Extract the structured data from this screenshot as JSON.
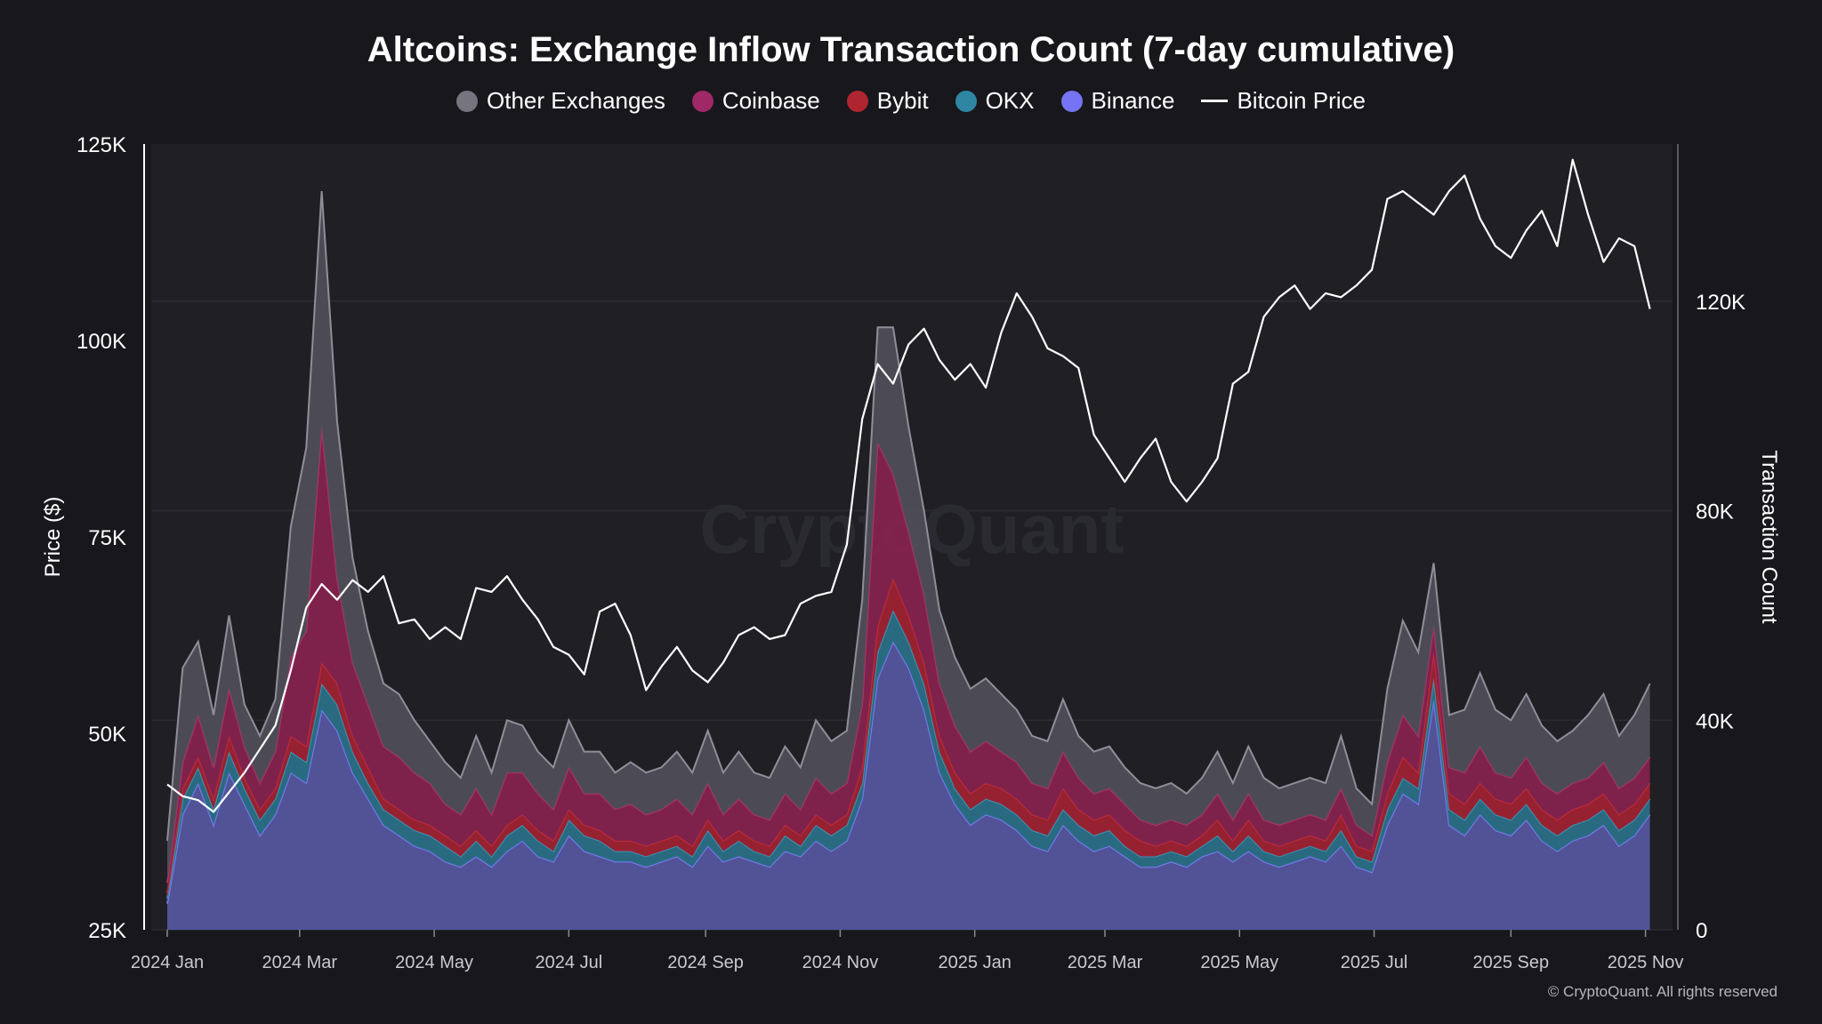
{
  "chart_data": {
    "type": "area",
    "title": "Altcoins: Exchange Inflow Transaction Count (7-day cumulative)",
    "ylabel": "Price ($)",
    "y2label": "Transaction Count",
    "ylim": [
      25000,
      125000
    ],
    "y2lim": [
      0,
      150000
    ],
    "yticks": [
      "25K",
      "50K",
      "75K",
      "100K",
      "125K"
    ],
    "y2ticks": [
      "0",
      "40K",
      "80K",
      "120K"
    ],
    "xticks": [
      "2024 Jan",
      "2024 Mar",
      "2024 May",
      "2024 Jul",
      "2024 Sep",
      "2024 Nov",
      "2025 Jan",
      "2025 Mar",
      "2025 May",
      "2025 Jul",
      "2025 Sep",
      "2025 Nov"
    ],
    "x": [
      "2024-01-01",
      "2024-01-08",
      "2024-01-15",
      "2024-01-22",
      "2024-01-29",
      "2024-02-05",
      "2024-02-12",
      "2024-02-19",
      "2024-02-26",
      "2024-03-04",
      "2024-03-11",
      "2024-03-18",
      "2024-03-25",
      "2024-04-01",
      "2024-04-08",
      "2024-04-15",
      "2024-04-22",
      "2024-04-29",
      "2024-05-06",
      "2024-05-13",
      "2024-05-20",
      "2024-05-27",
      "2024-06-03",
      "2024-06-10",
      "2024-06-17",
      "2024-06-24",
      "2024-07-01",
      "2024-07-08",
      "2024-07-15",
      "2024-07-22",
      "2024-07-29",
      "2024-08-05",
      "2024-08-12",
      "2024-08-19",
      "2024-08-26",
      "2024-09-02",
      "2024-09-09",
      "2024-09-16",
      "2024-09-23",
      "2024-09-30",
      "2024-10-07",
      "2024-10-14",
      "2024-10-21",
      "2024-10-28",
      "2024-11-04",
      "2024-11-11",
      "2024-11-18",
      "2024-11-25",
      "2024-12-02",
      "2024-12-09",
      "2024-12-16",
      "2024-12-23",
      "2024-12-30",
      "2025-01-06",
      "2025-01-13",
      "2025-01-20",
      "2025-01-27",
      "2025-02-03",
      "2025-02-10",
      "2025-02-17",
      "2025-02-24",
      "2025-03-03",
      "2025-03-10",
      "2025-03-17",
      "2025-03-24",
      "2025-03-31",
      "2025-04-07",
      "2025-04-14",
      "2025-04-21",
      "2025-04-28",
      "2025-05-05",
      "2025-05-12",
      "2025-05-19",
      "2025-05-26",
      "2025-06-02",
      "2025-06-09",
      "2025-06-16",
      "2025-06-23",
      "2025-06-30",
      "2025-07-07",
      "2025-07-14",
      "2025-07-21",
      "2025-07-28",
      "2025-08-04",
      "2025-08-11",
      "2025-08-18",
      "2025-08-25",
      "2025-09-01",
      "2025-09-08",
      "2025-09-15",
      "2025-09-22",
      "2025-09-29",
      "2025-10-06",
      "2025-10-13",
      "2025-10-20",
      "2025-10-27",
      "2025-11-03"
    ],
    "series": [
      {
        "name": "Binance",
        "color": "#6b6bf0",
        "values": [
          5,
          22,
          28,
          20,
          30,
          24,
          18,
          22,
          30,
          28,
          42,
          38,
          30,
          25,
          20,
          18,
          16,
          15,
          13,
          12,
          14,
          12,
          15,
          17,
          14,
          13,
          18,
          15,
          14,
          13,
          13,
          12,
          13,
          14,
          12,
          16,
          13,
          14,
          13,
          12,
          15,
          14,
          17,
          15,
          17,
          25,
          48,
          55,
          50,
          42,
          30,
          24,
          20,
          22,
          21,
          19,
          16,
          15,
          20,
          17,
          15,
          16,
          14,
          12,
          12,
          13,
          12,
          14,
          15,
          13,
          15,
          13,
          12,
          13,
          14,
          13,
          16,
          12,
          11,
          20,
          26,
          24,
          44,
          20,
          18,
          22,
          19,
          18,
          21,
          17,
          15,
          17,
          18,
          20,
          16,
          18,
          22
        ]
      },
      {
        "name": "OKX",
        "color": "#2f7f99",
        "values": [
          1,
          3,
          3,
          3,
          4,
          3,
          3,
          3,
          4,
          4,
          5,
          5,
          4,
          3,
          3,
          3,
          3,
          3,
          3,
          2,
          3,
          2,
          3,
          3,
          3,
          2,
          3,
          3,
          3,
          2,
          2,
          2,
          2,
          2,
          2,
          3,
          2,
          3,
          2,
          2,
          3,
          2,
          3,
          3,
          3,
          3,
          5,
          6,
          5,
          5,
          4,
          3,
          3,
          3,
          3,
          3,
          3,
          3,
          3,
          3,
          3,
          3,
          2,
          2,
          2,
          2,
          2,
          2,
          3,
          2,
          3,
          2,
          2,
          2,
          2,
          2,
          3,
          2,
          2,
          3,
          3,
          3,
          4,
          3,
          3,
          3,
          3,
          3,
          3,
          3,
          3,
          3,
          3,
          3,
          3,
          3,
          3
        ]
      },
      {
        "name": "Bybit",
        "color": "#a81e2a",
        "values": [
          1,
          2,
          2,
          2,
          3,
          2,
          2,
          2,
          3,
          3,
          4,
          4,
          3,
          3,
          2,
          2,
          2,
          2,
          2,
          2,
          2,
          2,
          2,
          2,
          2,
          2,
          2,
          2,
          2,
          2,
          2,
          2,
          2,
          2,
          2,
          2,
          2,
          2,
          2,
          2,
          2,
          2,
          2,
          2,
          2,
          3,
          5,
          6,
          5,
          4,
          3,
          3,
          3,
          3,
          3,
          3,
          3,
          3,
          4,
          3,
          3,
          3,
          3,
          3,
          2,
          2,
          2,
          2,
          3,
          2,
          3,
          2,
          2,
          2,
          2,
          2,
          3,
          2,
          2,
          3,
          4,
          3,
          5,
          3,
          3,
          3,
          3,
          3,
          3,
          3,
          3,
          3,
          3,
          3,
          3,
          3,
          3
        ]
      },
      {
        "name": "Coinbase",
        "color": "#8a2258",
        "values": [
          2,
          5,
          8,
          6,
          9,
          6,
          5,
          7,
          15,
          22,
          45,
          20,
          14,
          12,
          10,
          10,
          9,
          8,
          6,
          6,
          8,
          6,
          10,
          8,
          7,
          6,
          8,
          6,
          7,
          6,
          7,
          6,
          6,
          7,
          6,
          7,
          5,
          6,
          5,
          5,
          6,
          5,
          7,
          6,
          6,
          12,
          35,
          20,
          16,
          13,
          10,
          9,
          8,
          8,
          7,
          7,
          6,
          6,
          7,
          6,
          5,
          5,
          5,
          4,
          4,
          4,
          4,
          4,
          5,
          4,
          5,
          4,
          4,
          4,
          4,
          4,
          5,
          4,
          3,
          6,
          8,
          7,
          5,
          5,
          6,
          7,
          5,
          5,
          6,
          5,
          5,
          5,
          5,
          6,
          5,
          5,
          5
        ]
      },
      {
        "name": "Other Exchanges",
        "color": "#5d5c68",
        "values": [
          8,
          18,
          14,
          10,
          14,
          8,
          9,
          10,
          25,
          35,
          45,
          30,
          20,
          14,
          12,
          12,
          10,
          8,
          8,
          7,
          10,
          8,
          10,
          9,
          8,
          8,
          9,
          8,
          8,
          7,
          8,
          8,
          8,
          9,
          8,
          10,
          8,
          9,
          8,
          8,
          9,
          8,
          11,
          10,
          10,
          20,
          22,
          28,
          20,
          16,
          14,
          13,
          12,
          12,
          11,
          10,
          9,
          9,
          10,
          8,
          8,
          8,
          7,
          7,
          7,
          7,
          6,
          7,
          8,
          7,
          9,
          8,
          7,
          7,
          7,
          7,
          10,
          7,
          6,
          14,
          18,
          16,
          12,
          10,
          12,
          14,
          12,
          11,
          12,
          11,
          10,
          10,
          12,
          13,
          10,
          12,
          14
        ]
      },
      {
        "name": "Bitcoin Price",
        "color": "#ffffff",
        "axis": "left",
        "values": [
          43500,
          42000,
          41500,
          40000,
          42500,
          45000,
          48000,
          51000,
          58000,
          66000,
          69000,
          67000,
          69500,
          68000,
          70000,
          64000,
          64500,
          62000,
          63500,
          62000,
          68500,
          68000,
          70000,
          67000,
          64500,
          61000,
          60000,
          57500,
          65500,
          66500,
          62500,
          55500,
          58500,
          61000,
          58000,
          56500,
          59000,
          62500,
          63500,
          62000,
          62500,
          66500,
          67500,
          68000,
          74000,
          90000,
          97000,
          94500,
          99500,
          101500,
          97500,
          95000,
          97000,
          94000,
          101000,
          106000,
          103000,
          99000,
          98000,
          96500,
          88000,
          85000,
          82000,
          85000,
          87500,
          82000,
          79500,
          82000,
          85000,
          94500,
          96000,
          103000,
          105500,
          107000,
          104000,
          106000,
          105500,
          107000,
          109000,
          118000,
          119000,
          117500,
          116000,
          119000,
          121000,
          115500,
          112000,
          110500,
          114000,
          116500,
          112000,
          123000,
          116000,
          110000,
          113000,
          112000,
          104000
        ]
      }
    ],
    "grid": true,
    "legend": "top-center"
  },
  "watermark": "CryptoQuant",
  "copyright": "© CryptoQuant. All rights reserved"
}
